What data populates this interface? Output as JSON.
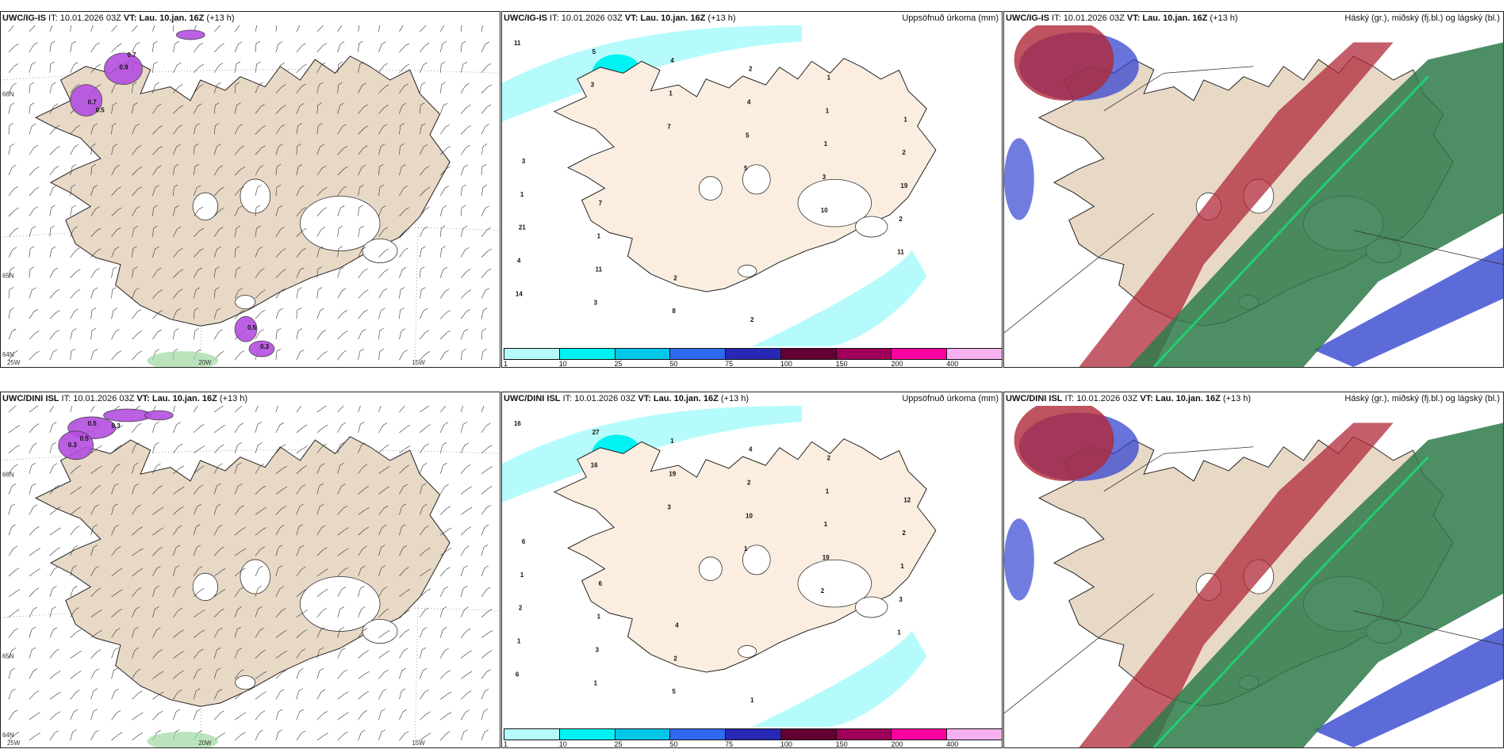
{
  "rows": [
    {
      "model": "UWC/IG-IS",
      "it_text": " IT: 10.01.2026 03Z ",
      "vt_label": "VT: Lau. 10.jan. 16Z",
      "lead": " (+13 h)",
      "wind_values": [
        "0.9",
        "0.7",
        "0.5",
        "0.3",
        "0.7",
        "0.5"
      ],
      "precip_values": [
        "11",
        "3",
        "7",
        "5",
        "10",
        "11",
        "14",
        "5",
        "1",
        "5",
        "3",
        "2",
        "4",
        "3",
        "4",
        "4",
        "1",
        "19",
        "21",
        "11",
        "8",
        "2",
        "1",
        "2",
        "1",
        "1",
        "2",
        "2",
        "1",
        "1",
        "3",
        "7"
      ],
      "axis_labels": [
        "66N",
        "65N",
        "64N",
        "25W",
        "20W",
        "15W"
      ]
    },
    {
      "model": "UWC/DINI ISL",
      "it_text": " IT: 10.01.2026 03Z ",
      "vt_label": "VT: Lau. 10.jan. 16Z",
      "lead": " (+13 h)",
      "wind_values": [
        "0.5",
        "0.5",
        "0.3",
        "0.3"
      ],
      "precip_values": [
        "16",
        "16",
        "3",
        "1",
        "2",
        "1",
        "6",
        "27",
        "19",
        "10",
        "19",
        "3",
        "1",
        "1",
        "1",
        "2",
        "1",
        "1",
        "2",
        "3",
        "5",
        "4",
        "1",
        "2",
        "1",
        "1",
        "2",
        "1",
        "2",
        "12",
        "6",
        "6",
        "4"
      ],
      "axis_labels": [
        "66N",
        "65N",
        "64N",
        "25W",
        "20W",
        "15W"
      ]
    }
  ],
  "precip_title": "Uppsöfnuð úrkoma (mm)",
  "cloud_title": "Háský (gr.), miðský (fj.bl.) og lágský (bl.)",
  "colorbar": {
    "ticks": [
      "1",
      "10",
      "25",
      "50",
      "75",
      "100",
      "150",
      "200",
      "400"
    ],
    "colors": [
      "#b6fbfb",
      "#00f2f2",
      "#00c6e8",
      "#2e69f0",
      "#2828b4",
      "#640032",
      "#a0005a",
      "#ff00a0",
      "#f7b0f0"
    ]
  },
  "colors": {
    "land": "#e8d8c6",
    "precip_land": "#fbeee0",
    "wind_purple": "#b44ee0",
    "cloud_high": "#2e7a4a",
    "cloud_mid": "#b02838",
    "cloud_low": "#3546d0"
  }
}
